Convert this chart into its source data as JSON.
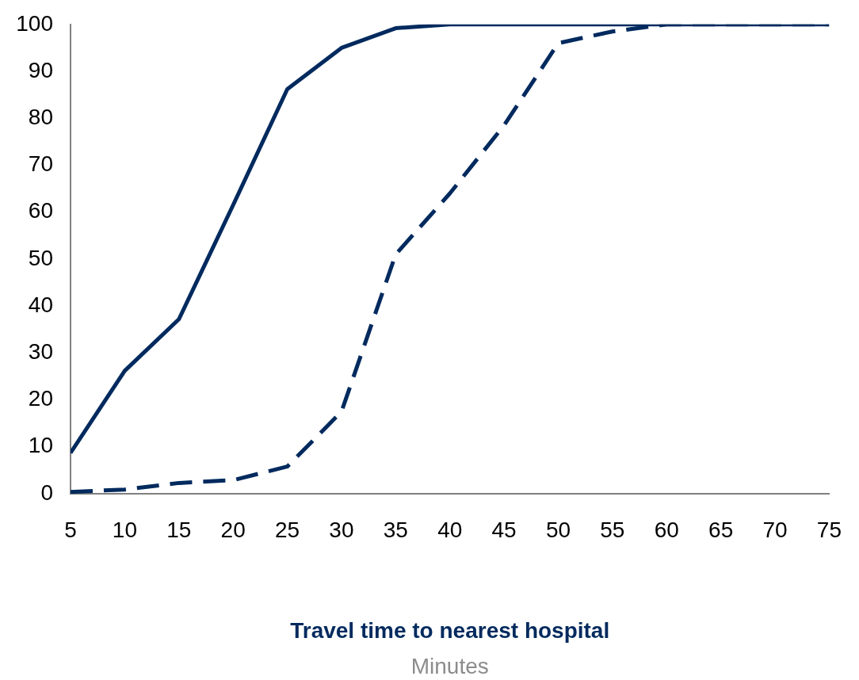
{
  "chart_data": {
    "type": "line",
    "xlabel": "Travel time to nearest hospital",
    "annotations": [
      "Minutes"
    ],
    "x": [
      5,
      10,
      15,
      20,
      25,
      30,
      35,
      40,
      45,
      50,
      55,
      60,
      65,
      70,
      75
    ],
    "series": [
      {
        "color": "#002a5e",
        "line_style": "solid",
        "values": [
          8.7,
          26.2,
          37.2,
          61.5,
          86.2,
          95,
          99.2,
          100,
          100,
          100,
          100,
          100,
          100,
          100,
          100
        ]
      },
      {
        "color": "#002a5e",
        "line_style": "dashed",
        "values": [
          0.4,
          0.9,
          2.3,
          2.9,
          5.8,
          17.5,
          51,
          64,
          78.5,
          96,
          98.5,
          100,
          100,
          100,
          100
        ]
      }
    ],
    "xlim": [
      5,
      75
    ],
    "xticks": [
      5,
      10,
      15,
      20,
      25,
      30,
      35,
      40,
      45,
      50,
      55,
      60,
      65,
      70,
      75
    ],
    "ylim": [
      0,
      100
    ],
    "yticks": [
      0,
      10,
      20,
      30,
      40,
      50,
      60,
      70,
      80,
      90,
      100
    ],
    "marker": "none",
    "legend": false
  }
}
